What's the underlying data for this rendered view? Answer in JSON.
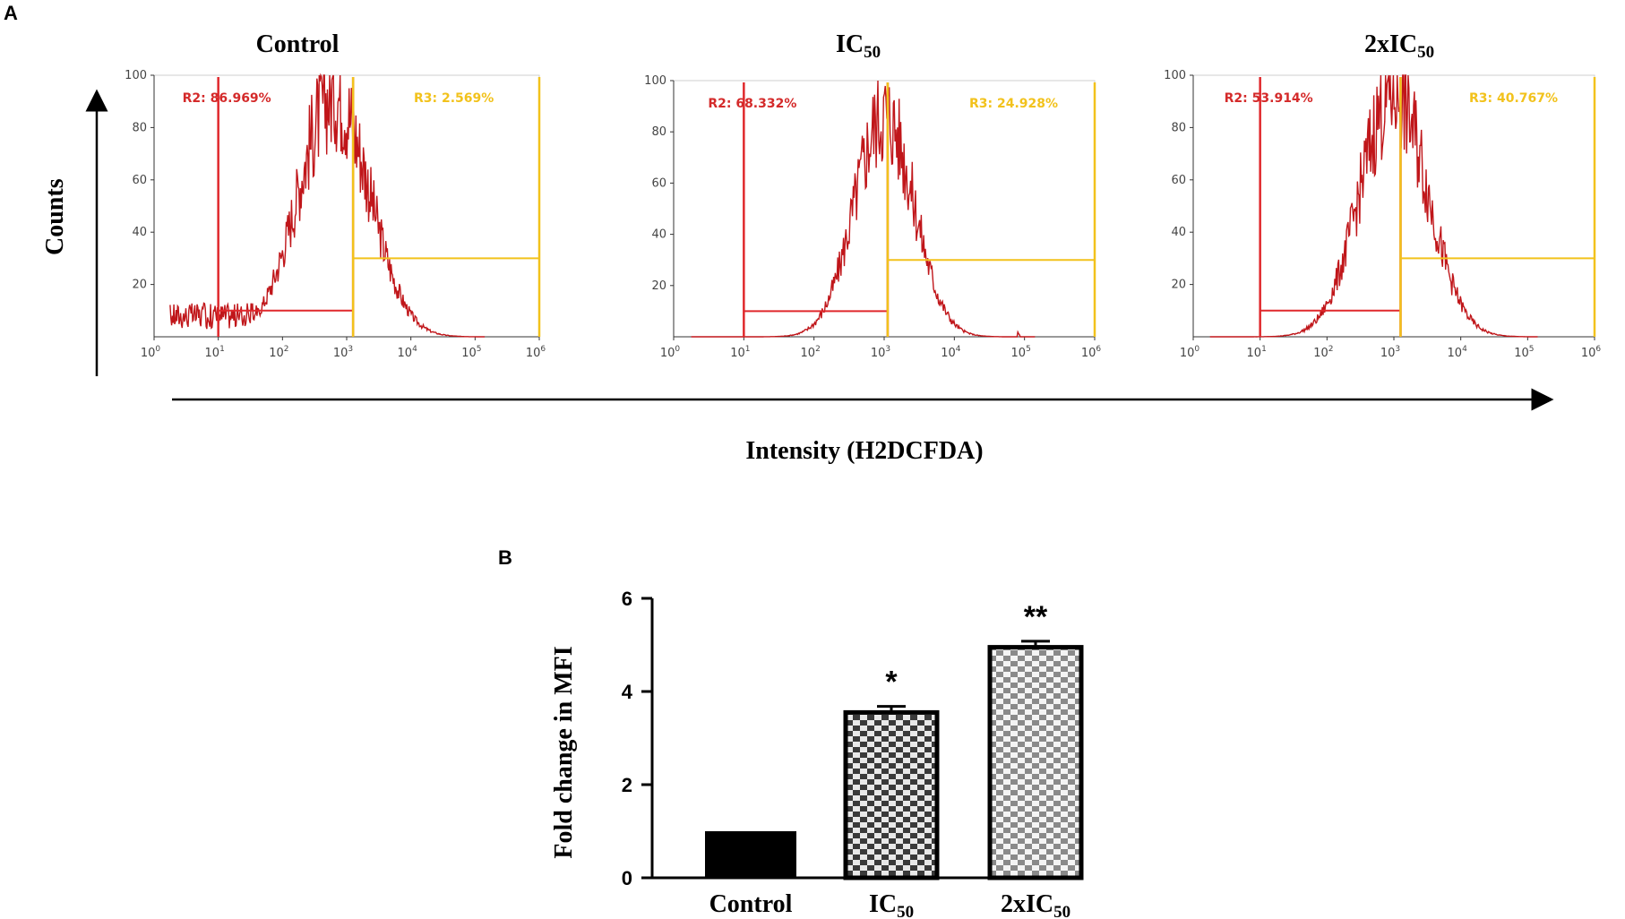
{
  "panel_labels": {
    "a": "A",
    "b": "B"
  },
  "chart_data": [
    {
      "type": "histogram",
      "panel": "A",
      "ylabel": "Counts",
      "xlabel": "Intensity (H2DCFDA)",
      "y_ticks": [
        "20",
        "40",
        "60",
        "80",
        "100"
      ],
      "x_ticks_exponents": [
        "0",
        "1",
        "2",
        "3",
        "4",
        "5",
        "6"
      ],
      "x_tick_base": "10",
      "ylim": [
        0,
        100
      ],
      "x_scale": "log",
      "xlim_exp": [
        0,
        6
      ],
      "colors": {
        "histogram": "#c0161a",
        "gate_r2": "#e0282c",
        "gate_r3": "#f2c21c"
      },
      "plots": [
        {
          "title_main": "Control",
          "title_sub": "",
          "gates": [
            {
              "label": "R2: 86.969%",
              "from_exp": 1.0,
              "to_exp": 3.1,
              "level": 10
            },
            {
              "label": "R3: 2.569%",
              "from_exp": 3.1,
              "to_exp": 6.0,
              "level": 30
            }
          ],
          "peak_exp": 2.8,
          "peak_height": 98,
          "spread": 0.55
        },
        {
          "title_main": "IC",
          "title_sub": "50",
          "gates": [
            {
              "label": "R2: 68.332%",
              "from_exp": 1.0,
              "to_exp": 3.05,
              "level": 10
            },
            {
              "label": "R3: 24.928%",
              "from_exp": 3.05,
              "to_exp": 6.0,
              "level": 30
            }
          ],
          "peak_exp": 3.0,
          "peak_height": 92,
          "spread": 0.42
        },
        {
          "title_main": "2xIC",
          "title_sub": "50",
          "gates": [
            {
              "label": "R2: 53.914%",
              "from_exp": 1.0,
              "to_exp": 3.1,
              "level": 10
            },
            {
              "label": "R3: 40.767%",
              "from_exp": 3.1,
              "to_exp": 6.0,
              "level": 30
            }
          ],
          "peak_exp": 3.0,
          "peak_height": 99,
          "spread": 0.5
        }
      ]
    },
    {
      "type": "bar",
      "panel": "B",
      "ylabel": "Fold change in MFI",
      "categories": [
        {
          "main": "Control",
          "sub": ""
        },
        {
          "main": "IC",
          "sub": "50"
        },
        {
          "main": "2xIC",
          "sub": "50"
        }
      ],
      "values": [
        1.0,
        3.55,
        4.95
      ],
      "errors": [
        0,
        0.13,
        0.13
      ],
      "significance": [
        "",
        "*",
        "**"
      ],
      "ylim": [
        0,
        6
      ],
      "y_ticks": [
        "0",
        "2",
        "4",
        "6"
      ],
      "fills": [
        "solid",
        "checker",
        "checker-light"
      ],
      "colors": {
        "solid": "#000000",
        "checker_dark": "#333333",
        "checker_light": "#bdbdbd"
      }
    }
  ]
}
